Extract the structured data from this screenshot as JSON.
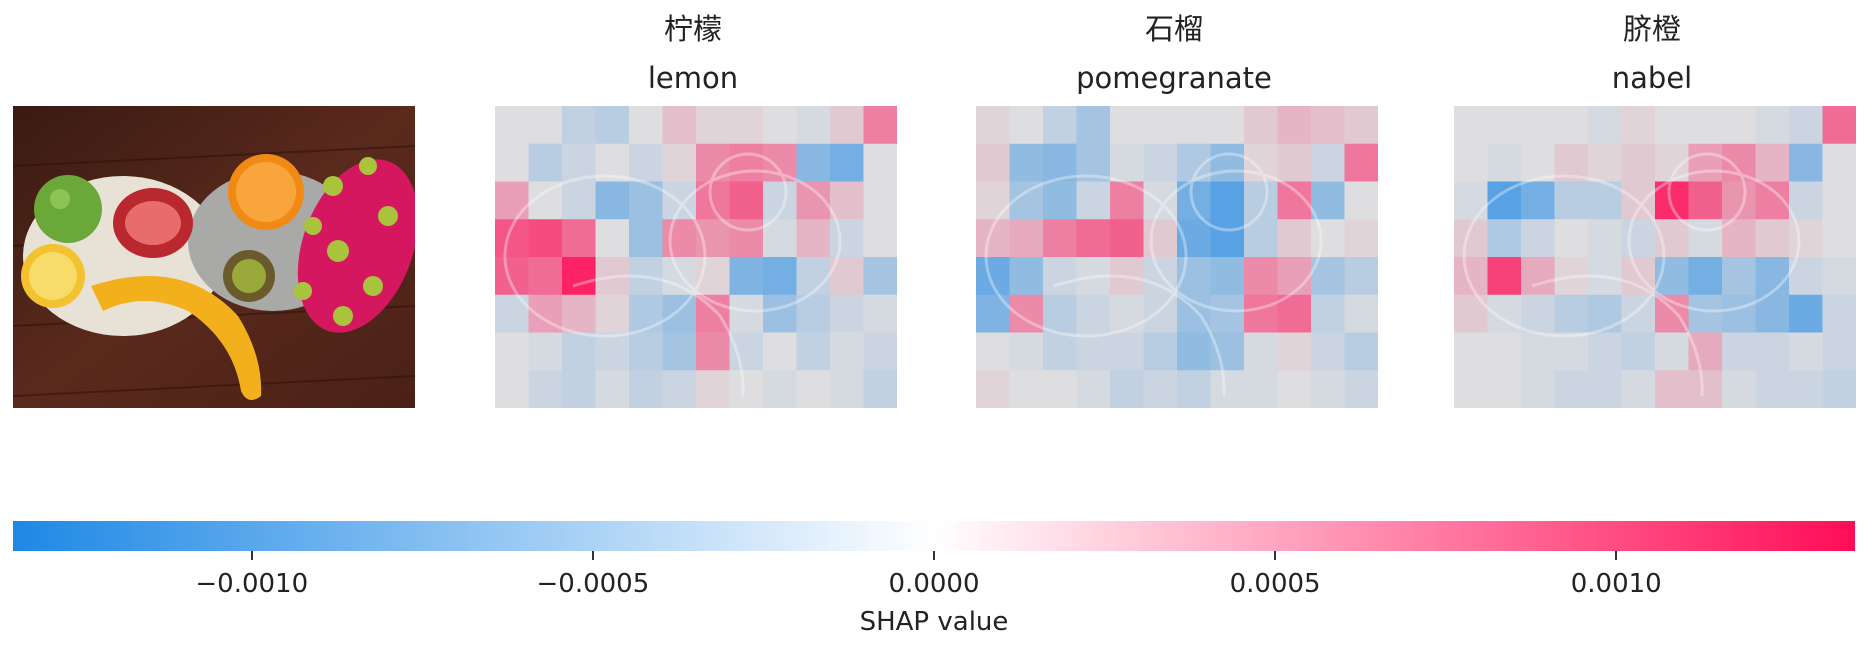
{
  "chart_data": {
    "type": "heatmap",
    "description_labels": {
      "original_image": "fruit plate photo"
    },
    "panels": [
      {
        "label_cn": "柠檬",
        "label_en": "lemon",
        "grid": [
          [
            0.0,
            0.0,
            -0.15,
            -0.2,
            0.0,
            0.15,
            0.05,
            0.05,
            0.0,
            -0.05,
            0.1,
            0.45
          ],
          [
            0.0,
            -0.2,
            -0.1,
            0.0,
            -0.1,
            0.05,
            0.4,
            0.45,
            0.4,
            -0.45,
            -0.55,
            0.0
          ],
          [
            0.3,
            0.0,
            -0.1,
            -0.45,
            -0.35,
            -0.1,
            0.5,
            0.6,
            -0.1,
            0.35,
            0.15,
            0.0
          ],
          [
            0.65,
            0.7,
            0.55,
            0.0,
            -0.35,
            0.4,
            0.35,
            0.4,
            -0.05,
            0.2,
            -0.1,
            0.0
          ],
          [
            0.6,
            0.55,
            0.9,
            0.1,
            -0.15,
            -0.05,
            0.05,
            -0.5,
            -0.55,
            -0.15,
            0.1,
            -0.3
          ],
          [
            -0.1,
            0.3,
            0.2,
            0.05,
            -0.25,
            -0.35,
            0.45,
            -0.05,
            -0.35,
            -0.2,
            -0.1,
            -0.05
          ],
          [
            0.0,
            -0.05,
            -0.15,
            -0.1,
            -0.2,
            -0.3,
            0.4,
            -0.1,
            0.0,
            -0.15,
            -0.05,
            -0.1
          ],
          [
            0.0,
            -0.1,
            -0.15,
            -0.05,
            -0.15,
            -0.1,
            0.05,
            0.0,
            -0.05,
            0.0,
            -0.05,
            -0.15
          ]
        ]
      },
      {
        "label_cn": "石榴",
        "label_en": "pomegranate",
        "grid": [
          [
            0.05,
            0.0,
            -0.15,
            -0.3,
            0.0,
            0.0,
            0.0,
            0.0,
            0.1,
            0.2,
            0.15,
            0.1
          ],
          [
            0.1,
            -0.4,
            -0.45,
            -0.3,
            -0.05,
            -0.1,
            -0.25,
            -0.4,
            0.05,
            0.1,
            -0.1,
            0.5
          ],
          [
            0.05,
            -0.3,
            -0.4,
            -0.1,
            0.45,
            -0.05,
            -0.55,
            -0.7,
            -0.2,
            0.5,
            -0.4,
            0.0
          ],
          [
            0.2,
            0.25,
            0.45,
            0.55,
            0.6,
            0.1,
            -0.6,
            -0.7,
            -0.2,
            0.1,
            0.0,
            0.05
          ],
          [
            -0.6,
            -0.4,
            -0.1,
            -0.05,
            0.1,
            -0.1,
            -0.35,
            -0.4,
            0.4,
            0.3,
            -0.3,
            -0.2
          ],
          [
            -0.5,
            0.4,
            -0.2,
            -0.1,
            -0.05,
            -0.1,
            -0.35,
            -0.3,
            0.5,
            0.55,
            -0.15,
            -0.05
          ],
          [
            0.0,
            -0.05,
            -0.15,
            -0.1,
            -0.1,
            -0.2,
            -0.4,
            -0.35,
            -0.05,
            0.05,
            -0.1,
            -0.2
          ],
          [
            0.05,
            0.0,
            0.0,
            -0.05,
            -0.15,
            -0.1,
            -0.15,
            -0.05,
            -0.05,
            0.0,
            -0.05,
            -0.1
          ]
        ]
      },
      {
        "label_cn": "脐橙",
        "label_en": "nabel",
        "grid": [
          [
            0.0,
            0.0,
            0.0,
            0.0,
            -0.05,
            0.05,
            0.0,
            0.0,
            0.0,
            -0.05,
            -0.1,
            0.55
          ],
          [
            0.0,
            -0.05,
            0.0,
            0.1,
            0.05,
            0.1,
            0.05,
            0.3,
            0.4,
            0.2,
            -0.45,
            0.0
          ],
          [
            -0.05,
            -0.7,
            -0.55,
            -0.2,
            -0.2,
            0.1,
            0.85,
            0.6,
            0.35,
            0.45,
            -0.1,
            0.0
          ],
          [
            0.1,
            -0.25,
            -0.1,
            0.0,
            -0.05,
            -0.1,
            0.1,
            -0.05,
            0.2,
            0.1,
            0.05,
            0.0
          ],
          [
            0.2,
            0.75,
            0.25,
            0.05,
            -0.05,
            0.1,
            -0.4,
            -0.55,
            -0.3,
            -0.45,
            -0.1,
            -0.05
          ],
          [
            0.1,
            -0.05,
            -0.1,
            -0.2,
            -0.25,
            -0.1,
            0.4,
            -0.3,
            -0.35,
            -0.45,
            -0.6,
            -0.1
          ],
          [
            0.0,
            0.0,
            -0.05,
            -0.05,
            -0.1,
            -0.15,
            -0.05,
            0.25,
            -0.1,
            -0.1,
            -0.05,
            -0.1
          ],
          [
            0.0,
            0.0,
            -0.05,
            -0.1,
            -0.1,
            -0.05,
            0.15,
            0.15,
            -0.05,
            -0.1,
            -0.1,
            -0.15
          ]
        ]
      }
    ],
    "colorbar": {
      "label": "SHAP value",
      "range": [
        -0.00135,
        0.00135
      ],
      "ticks": [
        -0.001,
        -0.0005,
        0.0,
        0.0005,
        0.001
      ],
      "tick_labels": [
        "−0.0010",
        "−0.0005",
        "0.0000",
        "0.0005",
        "0.0010"
      ],
      "negative_color": "#1e88e5",
      "positive_color": "#ff0d57"
    }
  }
}
